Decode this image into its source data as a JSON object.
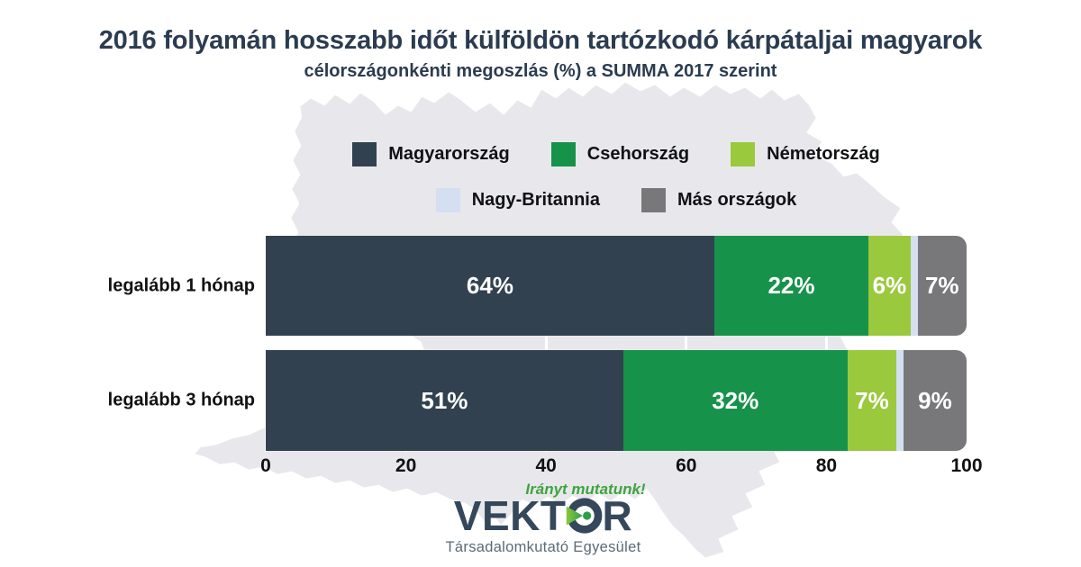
{
  "title": "2016 folyamán hosszabb időt külföldön tartózkodó kárpátaljai magyarok",
  "subtitle": "célországonkénti megoszlás (%) a SUMMA 2017 szerint",
  "legend_rows": [
    [
      "Magyarország",
      "Csehország",
      "Németország"
    ],
    [
      "Nagy-Britannia",
      "Más országok"
    ]
  ],
  "chart_data": {
    "type": "bar",
    "orientation": "horizontal",
    "stacked": true,
    "title": "2016 folyamán hosszabb időt külföldön tartózkodó kárpátaljai magyarok",
    "subtitle": "célországonkénti megoszlás (%) a SUMMA 2017 szerint",
    "categories": [
      "legalább 1 hónap",
      "legalább 3 hónap"
    ],
    "series": [
      {
        "name": "Magyarország",
        "color": "#32414f",
        "values": [
          64,
          51
        ]
      },
      {
        "name": "Csehország",
        "color": "#17924a",
        "values": [
          22,
          32
        ]
      },
      {
        "name": "Németország",
        "color": "#9ac93d",
        "values": [
          6,
          7
        ]
      },
      {
        "name": "Nagy-Britannia",
        "color": "#d4dff2",
        "values": [
          1,
          1
        ]
      },
      {
        "name": "Más országok",
        "color": "#787779",
        "values": [
          7,
          9
        ]
      }
    ],
    "value_labels": [
      [
        "64%",
        "22%",
        "6%",
        "",
        "7%"
      ],
      [
        "51%",
        "32%",
        "7%",
        "",
        "9%"
      ]
    ],
    "xlim": [
      0,
      100
    ],
    "x_ticks": [
      0,
      20,
      40,
      60,
      80,
      100
    ],
    "legend_position": "top-center",
    "grid": "white vertical lines visible between bars"
  },
  "footer": {
    "tagline": "Irányt mutatunk!",
    "brand": "VEKTOR",
    "brand_sub": "Társadalomkutató Egyesület"
  },
  "colors": {
    "title_navy": "#2b3c50",
    "map_fill": "#e8e8ec",
    "map_stroke": "#ffffff",
    "tagline_green": "#3fa33f",
    "brand_navy": "#35475a",
    "brand_sub_gray": "#5a6a79"
  }
}
